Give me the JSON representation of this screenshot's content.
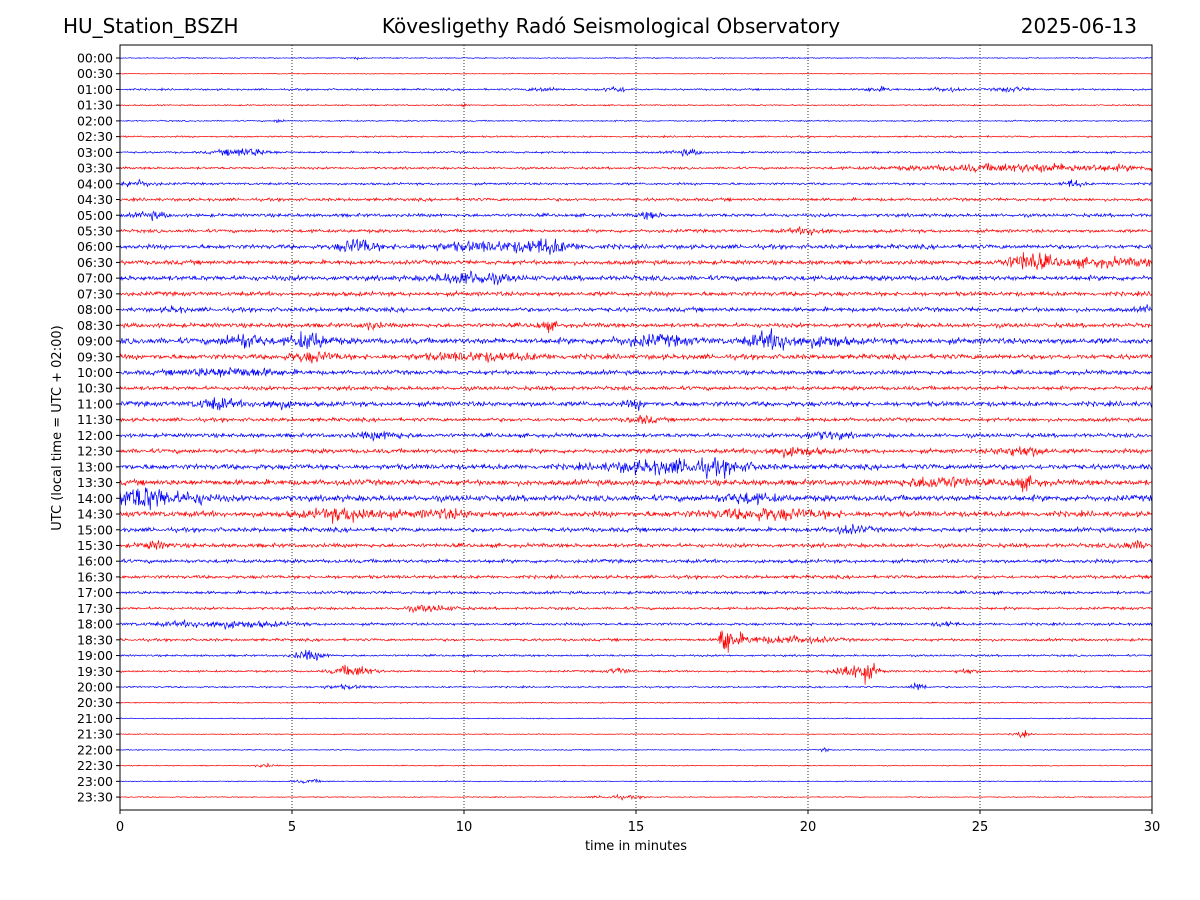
{
  "header": {
    "station": "HU_Station_BSZH",
    "observatory": "Kövesligethy Radó Seismological Observatory",
    "date": "2025-06-13"
  },
  "chart_data": {
    "type": "line",
    "xlabel": "time in minutes",
    "ylabel": "UTC (local time = UTC + 02:00)",
    "xlim": [
      0,
      30
    ],
    "xticks": [
      0,
      5,
      10,
      15,
      20,
      25,
      30
    ],
    "vertical_grid": "dotted",
    "row_labels": [
      "00:00",
      "00:30",
      "01:00",
      "01:30",
      "02:00",
      "02:30",
      "03:00",
      "03:30",
      "04:00",
      "04:30",
      "05:00",
      "05:30",
      "06:00",
      "06:30",
      "07:00",
      "07:30",
      "08:00",
      "08:30",
      "09:00",
      "09:30",
      "10:00",
      "10:30",
      "11:00",
      "11:30",
      "12:00",
      "12:30",
      "13:00",
      "13:30",
      "14:00",
      "14:30",
      "15:00",
      "15:30",
      "16:00",
      "16:30",
      "17:00",
      "17:30",
      "18:00",
      "18:30",
      "19:00",
      "19:30",
      "20:00",
      "20:30",
      "21:00",
      "21:30",
      "22:00",
      "22:30",
      "23:00",
      "23:30"
    ],
    "trace_colors": [
      "#0000ff",
      "#ff0000"
    ],
    "row_noise": [
      0.6,
      0.5,
      1.1,
      0.8,
      0.8,
      1.0,
      1.2,
      1.4,
      1.4,
      1.8,
      2.0,
      2.0,
      2.6,
      2.6,
      3.0,
      2.6,
      2.6,
      2.6,
      3.6,
      3.0,
      2.6,
      2.4,
      3.0,
      2.2,
      2.4,
      2.6,
      3.2,
      3.4,
      3.6,
      3.4,
      2.6,
      2.4,
      2.2,
      2.0,
      1.8,
      1.6,
      1.6,
      1.6,
      1.2,
      1.2,
      1.0,
      0.7,
      0.6,
      0.6,
      0.6,
      0.6,
      0.6,
      0.6
    ],
    "events": [
      {
        "row": 0,
        "t": 6.9,
        "amp": 1.5,
        "dur": 0.1
      },
      {
        "row": 2,
        "t": 12.3,
        "amp": 2.5,
        "dur": 0.3
      },
      {
        "row": 2,
        "t": 14.4,
        "amp": 3.5,
        "dur": 0.25
      },
      {
        "row": 2,
        "t": 22.0,
        "amp": 2.5,
        "dur": 0.3
      },
      {
        "row": 2,
        "t": 24.0,
        "amp": 2.5,
        "dur": 0.3
      },
      {
        "row": 2,
        "t": 25.9,
        "amp": 3.0,
        "dur": 0.3
      },
      {
        "row": 3,
        "t": 10.0,
        "amp": 3.0,
        "dur": 0.05
      },
      {
        "row": 4,
        "t": 4.6,
        "amp": 2.0,
        "dur": 0.1
      },
      {
        "row": 6,
        "t": 3.6,
        "amp": 5.0,
        "dur": 0.5
      },
      {
        "row": 6,
        "t": 16.5,
        "amp": 3.5,
        "dur": 0.3
      },
      {
        "row": 7,
        "t": 26.5,
        "amp": 4.5,
        "dur": 2.5
      },
      {
        "row": 8,
        "t": 0.4,
        "amp": 4.0,
        "dur": 0.4
      },
      {
        "row": 8,
        "t": 27.7,
        "amp": 4.5,
        "dur": 0.2
      },
      {
        "row": 10,
        "t": 0.9,
        "amp": 4.0,
        "dur": 0.3
      },
      {
        "row": 10,
        "t": 15.4,
        "amp": 4.0,
        "dur": 0.2
      },
      {
        "row": 11,
        "t": 20.1,
        "amp": 4.0,
        "dur": 0.4
      },
      {
        "row": 12,
        "t": 6.9,
        "amp": 9.0,
        "dur": 0.35
      },
      {
        "row": 12,
        "t": 11.0,
        "amp": 5.0,
        "dur": 1.5
      },
      {
        "row": 12,
        "t": 12.4,
        "amp": 5.5,
        "dur": 0.4
      },
      {
        "row": 13,
        "t": 26.4,
        "amp": 10.0,
        "dur": 0.4
      },
      {
        "row": 13,
        "t": 28.5,
        "amp": 4.0,
        "dur": 1.5
      },
      {
        "row": 14,
        "t": 10.2,
        "amp": 7.0,
        "dur": 0.7
      },
      {
        "row": 16,
        "t": 1.6,
        "amp": 3.0,
        "dur": 0.2
      },
      {
        "row": 16,
        "t": 30.0,
        "amp": 5.0,
        "dur": 0.2
      },
      {
        "row": 17,
        "t": 7.3,
        "amp": 4.0,
        "dur": 0.2
      },
      {
        "row": 17,
        "t": 12.4,
        "amp": 5.0,
        "dur": 0.2
      },
      {
        "row": 18,
        "t": 3.6,
        "amp": 8.0,
        "dur": 0.4
      },
      {
        "row": 18,
        "t": 5.5,
        "amp": 9.0,
        "dur": 0.4
      },
      {
        "row": 18,
        "t": 15.5,
        "amp": 5.0,
        "dur": 0.8
      },
      {
        "row": 18,
        "t": 19.0,
        "amp": 10.0,
        "dur": 0.5
      },
      {
        "row": 18,
        "t": 20.5,
        "amp": 5.0,
        "dur": 0.5
      },
      {
        "row": 19,
        "t": 5.6,
        "amp": 5.0,
        "dur": 0.5
      },
      {
        "row": 19,
        "t": 10.5,
        "amp": 4.0,
        "dur": 1.2
      },
      {
        "row": 20,
        "t": 3.2,
        "amp": 5.0,
        "dur": 1.0
      },
      {
        "row": 22,
        "t": 2.8,
        "amp": 6.0,
        "dur": 0.4
      },
      {
        "row": 22,
        "t": 4.5,
        "amp": 4.0,
        "dur": 0.4
      },
      {
        "row": 22,
        "t": 15.0,
        "amp": 4.0,
        "dur": 0.2
      },
      {
        "row": 23,
        "t": 15.2,
        "amp": 4.0,
        "dur": 0.3
      },
      {
        "row": 24,
        "t": 7.6,
        "amp": 4.0,
        "dur": 0.5
      },
      {
        "row": 24,
        "t": 20.5,
        "amp": 4.0,
        "dur": 0.5
      },
      {
        "row": 25,
        "t": 19.5,
        "amp": 5.0,
        "dur": 0.6
      },
      {
        "row": 25,
        "t": 26.2,
        "amp": 5.5,
        "dur": 0.5
      },
      {
        "row": 26,
        "t": 15.8,
        "amp": 7.0,
        "dur": 1.2
      },
      {
        "row": 26,
        "t": 17.5,
        "amp": 5.0,
        "dur": 0.6
      },
      {
        "row": 27,
        "t": 23.8,
        "amp": 6.0,
        "dur": 0.7
      },
      {
        "row": 27,
        "t": 26.3,
        "amp": 6.0,
        "dur": 0.3
      },
      {
        "row": 28,
        "t": 0.3,
        "amp": 9.0,
        "dur": 0.6
      },
      {
        "row": 28,
        "t": 1.0,
        "amp": 8.0,
        "dur": 0.4
      },
      {
        "row": 28,
        "t": 2.2,
        "amp": 5.0,
        "dur": 0.4
      },
      {
        "row": 28,
        "t": 18.2,
        "amp": 5.0,
        "dur": 0.6
      },
      {
        "row": 29,
        "t": 6.7,
        "amp": 7.0,
        "dur": 0.8
      },
      {
        "row": 29,
        "t": 18.8,
        "amp": 5.5,
        "dur": 1.2
      },
      {
        "row": 29,
        "t": 9.5,
        "amp": 4.0,
        "dur": 0.6
      },
      {
        "row": 30,
        "t": 21.2,
        "amp": 4.0,
        "dur": 0.4
      },
      {
        "row": 31,
        "t": 1.0,
        "amp": 4.0,
        "dur": 0.3
      },
      {
        "row": 31,
        "t": 29.5,
        "amp": 4.0,
        "dur": 0.4
      },
      {
        "row": 35,
        "t": 9.0,
        "amp": 3.5,
        "dur": 0.5
      },
      {
        "row": 36,
        "t": 3.0,
        "amp": 4.0,
        "dur": 1.2
      },
      {
        "row": 36,
        "t": 24.0,
        "amp": 3.0,
        "dur": 0.2
      },
      {
        "row": 37,
        "t": 17.45,
        "amp": 30.0,
        "dur": 0.8,
        "big": true
      },
      {
        "row": 37,
        "t": 19.5,
        "amp": 4.0,
        "dur": 0.8
      },
      {
        "row": 38,
        "t": 5.5,
        "amp": 6.0,
        "dur": 0.3
      },
      {
        "row": 39,
        "t": 6.8,
        "amp": 7.0,
        "dur": 0.4
      },
      {
        "row": 39,
        "t": 14.5,
        "amp": 4.0,
        "dur": 0.2
      },
      {
        "row": 39,
        "t": 21.1,
        "amp": 8.0,
        "dur": 0.3
      },
      {
        "row": 39,
        "t": 21.7,
        "amp": 10.0,
        "dur": 0.25
      },
      {
        "row": 39,
        "t": 24.6,
        "amp": 3.0,
        "dur": 0.2
      },
      {
        "row": 40,
        "t": 6.5,
        "amp": 2.0,
        "dur": 0.5
      },
      {
        "row": 40,
        "t": 23.2,
        "amp": 6.0,
        "dur": 0.15
      },
      {
        "row": 43,
        "t": 26.2,
        "amp": 4.0,
        "dur": 0.15
      },
      {
        "row": 44,
        "t": 20.5,
        "amp": 2.0,
        "dur": 0.1
      },
      {
        "row": 45,
        "t": 4.2,
        "amp": 2.0,
        "dur": 0.2
      },
      {
        "row": 46,
        "t": 5.5,
        "amp": 2.0,
        "dur": 0.3
      },
      {
        "row": 47,
        "t": 14.5,
        "amp": 2.0,
        "dur": 0.5
      }
    ]
  }
}
